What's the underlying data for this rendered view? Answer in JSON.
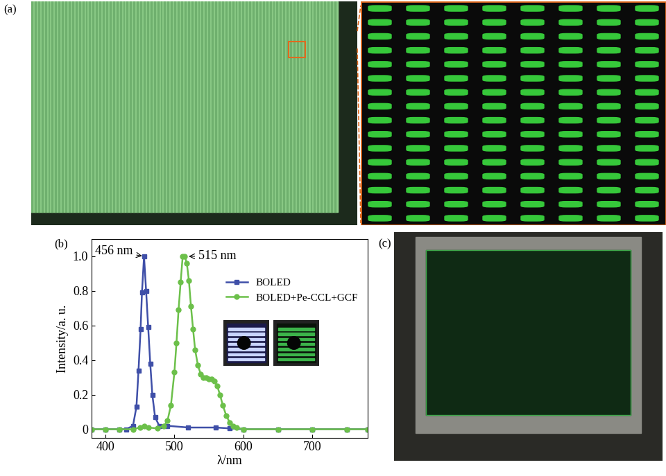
{
  "panel_labels": [
    "(a)",
    "(b)",
    "(c)"
  ],
  "chart_data": {
    "type": "line",
    "x_label": "λ/nm",
    "y_label": "Intensity/a. u.",
    "series": [
      {
        "name": "BOLED",
        "color": "#3f4fa8",
        "marker": "s",
        "line_style": "solid",
        "x": [
          380,
          400,
          420,
          430,
          440,
          445,
          448,
          451,
          453,
          456,
          459,
          462,
          465,
          468,
          472,
          478,
          490,
          520,
          560,
          580,
          600,
          650,
          700,
          750,
          780
        ],
        "values": [
          0,
          0,
          0,
          0,
          0.02,
          0.13,
          0.34,
          0.58,
          0.79,
          1.0,
          0.8,
          0.59,
          0.38,
          0.2,
          0.07,
          0.02,
          0.02,
          0.01,
          0.01,
          0.005,
          0,
          0,
          0,
          0,
          0
        ]
      },
      {
        "name": "BOLED+Pe-CCL+GCF",
        "color": "#6cc04a",
        "marker": "o",
        "line_style": "solid",
        "x": [
          380,
          400,
          420,
          440,
          450,
          456,
          462,
          475,
          485,
          490,
          495,
          500,
          503,
          506,
          509,
          512,
          515,
          518,
          521,
          524,
          527,
          530,
          534,
          538,
          542,
          546,
          550,
          554,
          558,
          562,
          566,
          570,
          575,
          580,
          585,
          590,
          600,
          650,
          700,
          750,
          780
        ],
        "values": [
          0,
          0,
          0,
          0,
          0.01,
          0.02,
          0.01,
          0.005,
          0.02,
          0.05,
          0.14,
          0.33,
          0.5,
          0.69,
          0.85,
          1.0,
          1.0,
          0.96,
          0.86,
          0.71,
          0.58,
          0.46,
          0.37,
          0.32,
          0.3,
          0.3,
          0.29,
          0.29,
          0.28,
          0.25,
          0.2,
          0.14,
          0.08,
          0.04,
          0.02,
          0.01,
          0,
          0,
          0,
          0,
          0
        ]
      }
    ],
    "annotations": [
      {
        "text": "456 nm",
        "x": 456,
        "y": 1.0
      },
      {
        "text": "515 nm",
        "x": 515,
        "y": 1.0
      }
    ],
    "xlim": [
      380,
      780
    ],
    "xticks": [
      400,
      500,
      600,
      700
    ],
    "ylim": [
      -0.05,
      1.1
    ],
    "yticks": [
      0,
      0.2,
      0.4,
      0.6,
      0.8,
      {
        "value": 1,
        "label": "1.0"
      }
    ],
    "legend": "upper right",
    "grid": false
  }
}
